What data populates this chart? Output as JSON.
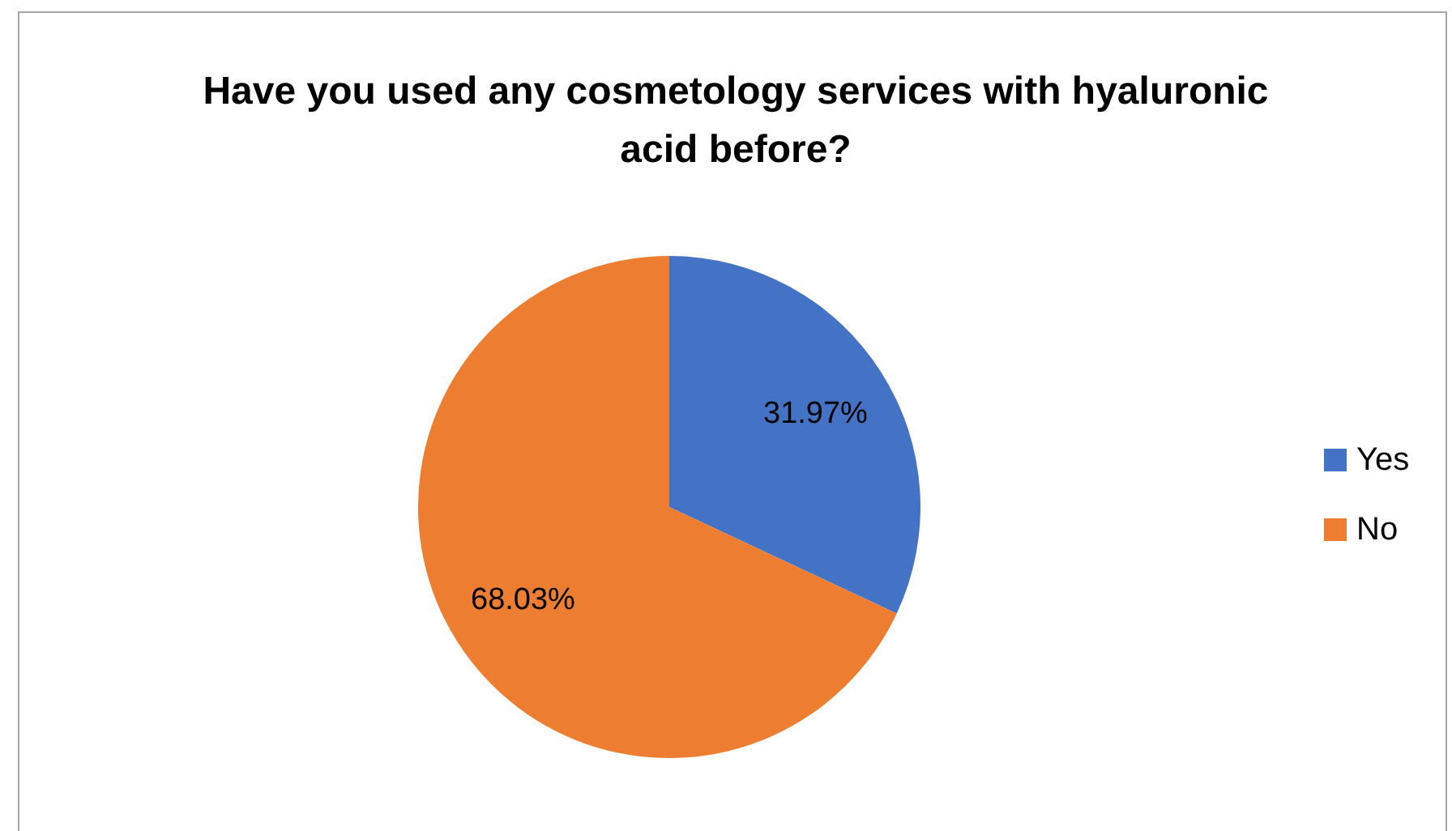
{
  "chart_data": {
    "type": "pie",
    "title": "Have you used any cosmetology services with hyaluronic acid before?",
    "categories": [
      "Yes",
      "No"
    ],
    "values": [
      31.97,
      68.03
    ],
    "colors": [
      "#4472c4",
      "#ed7d31"
    ],
    "value_labels": [
      "31.97%",
      "68.03%"
    ],
    "legend": "right"
  }
}
